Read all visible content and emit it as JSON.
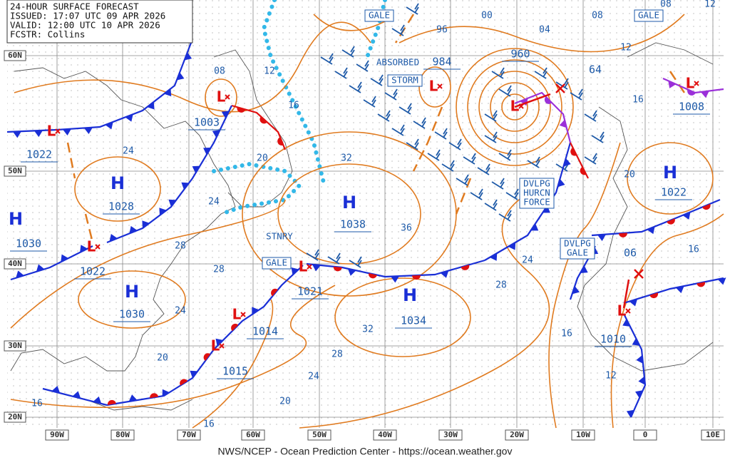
{
  "header": {
    "lines": [
      "24-HOUR SURFACE FORECAST",
      "ISSUED: 17:07 UTC 09 APR 2026",
      "VALID: 12:00 UTC 10 APR 2026",
      "FCSTR: Collins"
    ]
  },
  "latitude_labels": [
    "60N",
    "50N",
    "40N",
    "30N",
    "20N"
  ],
  "longitude_labels": [
    "90W",
    "80W",
    "70W",
    "60W",
    "50W",
    "40W",
    "30W",
    "20W",
    "10W",
    "0",
    "10E"
  ],
  "pressure_centers": [
    {
      "symbol": "H",
      "pressure": "1028"
    },
    {
      "symbol": "H",
      "pressure": "1030"
    },
    {
      "symbol": "L",
      "pressure": "1022"
    },
    {
      "symbol": "L",
      "pressure": "1003"
    },
    {
      "symbol": "L",
      "pressure": "1022"
    },
    {
      "symbol": "H",
      "pressure": "1030"
    },
    {
      "symbol": "H",
      "pressure": "1038"
    },
    {
      "symbol": "L",
      "pressure": "1021"
    },
    {
      "symbol": "L",
      "pressure": "1014"
    },
    {
      "symbol": "L",
      "pressure": "1015"
    },
    {
      "symbol": "H",
      "pressure": "1034"
    },
    {
      "symbol": "L",
      "pressure": "984"
    },
    {
      "symbol": "L",
      "pressure": "960"
    },
    {
      "symbol": "H",
      "pressure": "1022"
    },
    {
      "symbol": "L",
      "pressure": "1008"
    },
    {
      "symbol": "L",
      "pressure": "1010"
    }
  ],
  "isobar_labels": [
    "08",
    "12",
    "16",
    "20",
    "24",
    "24",
    "32",
    "36",
    "28",
    "28",
    "24",
    "20",
    "16",
    "16",
    "20",
    "24",
    "28",
    "32",
    "28",
    "24",
    "16",
    "12",
    "20",
    "16",
    "12",
    "08",
    "04",
    "00",
    "96",
    "64",
    "06",
    "16",
    "12",
    "08"
  ],
  "annotations": [
    {
      "lines": [
        "GALE"
      ]
    },
    {
      "lines": [
        "GALE"
      ]
    },
    {
      "lines": [
        "ABSORBED"
      ]
    },
    {
      "lines": [
        "STORM"
      ]
    },
    {
      "lines": [
        "STNRY"
      ]
    },
    {
      "lines": [
        "GALE"
      ]
    },
    {
      "lines": [
        "DVLPG",
        "HURCN",
        "FORCE"
      ]
    },
    {
      "lines": [
        "DVLPG",
        "GALE"
      ]
    }
  ],
  "footer": "NWS/NCEP - Ocean Prediction Center - https://ocean.weather.gov"
}
